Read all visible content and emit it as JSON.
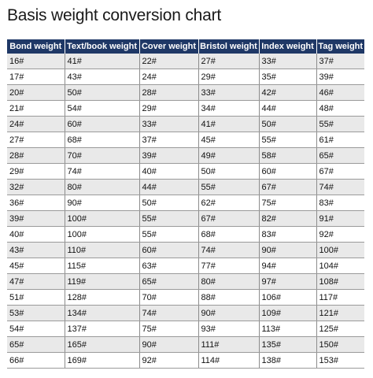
{
  "title": "Basis weight conversion chart",
  "table": {
    "columns": [
      "Bond weight",
      "Text/book weight",
      "Cover weight",
      "Bristol weight",
      "Index weight",
      "Tag weight"
    ],
    "rows": [
      [
        "16#",
        "41#",
        "22#",
        "27#",
        "33#",
        "37#"
      ],
      [
        "17#",
        "43#",
        "24#",
        "29#",
        "35#",
        "39#"
      ],
      [
        "20#",
        "50#",
        "28#",
        "33#",
        "42#",
        "46#"
      ],
      [
        "21#",
        "54#",
        "29#",
        "34#",
        "44#",
        "48#"
      ],
      [
        "24#",
        "60#",
        "33#",
        "41#",
        "50#",
        "55#"
      ],
      [
        "27#",
        "68#",
        "37#",
        "45#",
        "55#",
        "61#"
      ],
      [
        "28#",
        "70#",
        "39#",
        "49#",
        "58#",
        "65#"
      ],
      [
        "29#",
        "74#",
        "40#",
        "50#",
        "60#",
        "67#"
      ],
      [
        "32#",
        "80#",
        "44#",
        "55#",
        "67#",
        "74#"
      ],
      [
        "36#",
        "90#",
        "50#",
        "62#",
        "75#",
        "83#"
      ],
      [
        "39#",
        "100#",
        "55#",
        "67#",
        "82#",
        "91#"
      ],
      [
        "40#",
        "100#",
        "55#",
        "68#",
        "83#",
        "92#"
      ],
      [
        "43#",
        "110#",
        "60#",
        "74#",
        "90#",
        "100#"
      ],
      [
        "45#",
        "115#",
        "63#",
        "77#",
        "94#",
        "104#"
      ],
      [
        "47#",
        "119#",
        "65#",
        "80#",
        "97#",
        "108#"
      ],
      [
        "51#",
        "128#",
        "70#",
        "88#",
        "106#",
        "117#"
      ],
      [
        "53#",
        "134#",
        "74#",
        "90#",
        "109#",
        "121#"
      ],
      [
        "54#",
        "137#",
        "75#",
        "93#",
        "113#",
        "125#"
      ],
      [
        "65#",
        "165#",
        "90#",
        "111#",
        "135#",
        "150#"
      ],
      [
        "66#",
        "169#",
        "92#",
        "114#",
        "138#",
        "153#"
      ]
    ]
  }
}
